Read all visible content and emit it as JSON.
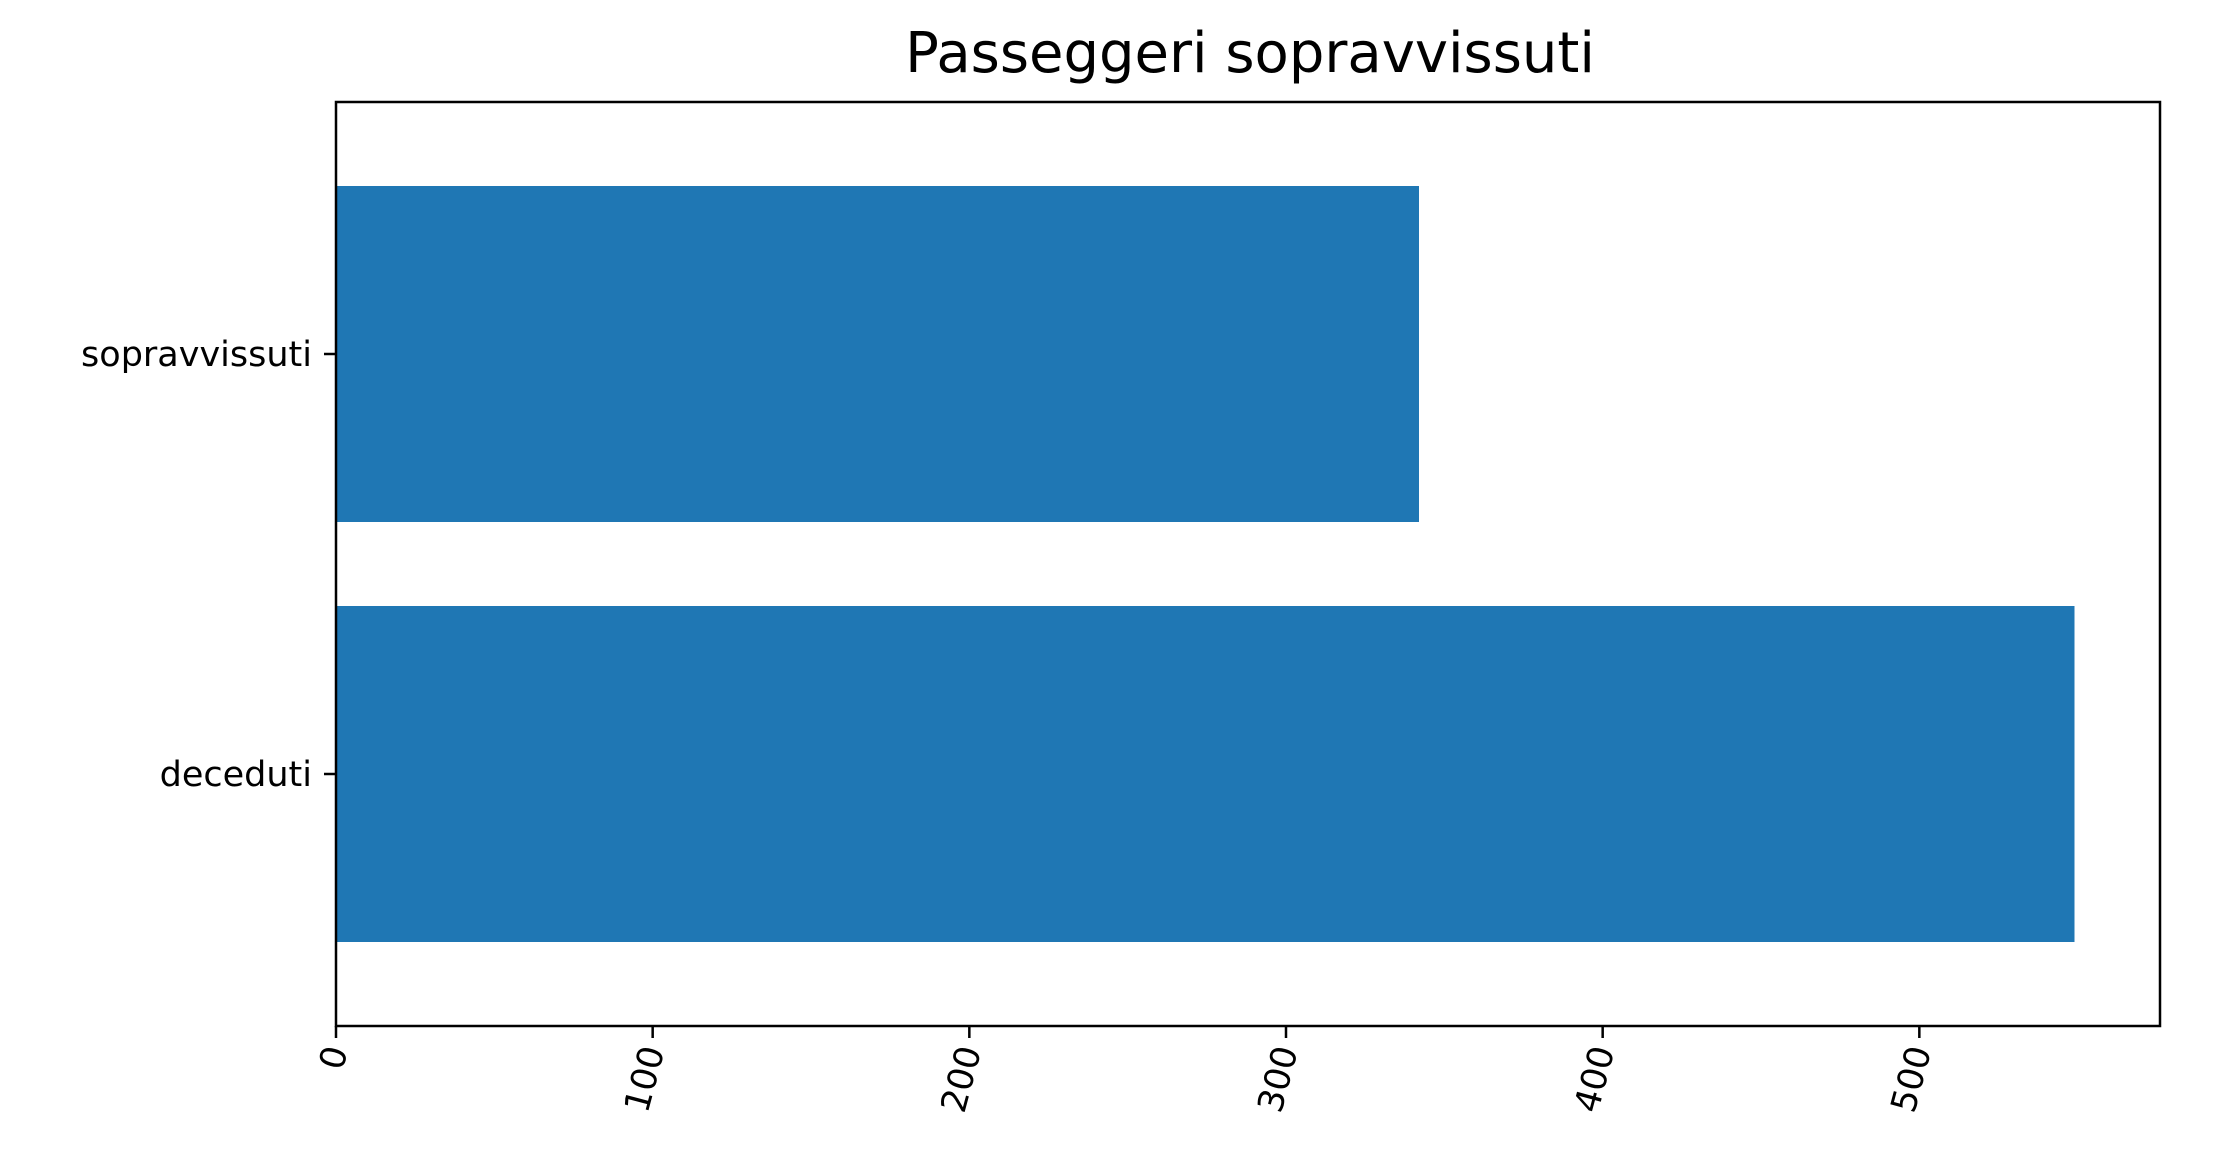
{
  "chart_data": {
    "type": "bar",
    "orientation": "horizontal",
    "title": "Passeggeri sopravvissuti",
    "xlabel": "",
    "ylabel": "",
    "categories": [
      "sopravvissuti",
      "deceduti"
    ],
    "values": [
      342,
      549
    ],
    "xlim": [
      0,
      576
    ],
    "xticks": [
      0,
      100,
      200,
      300,
      400,
      500
    ],
    "xtick_rotation": -75,
    "bar_color": "#1f77b4",
    "grid": false,
    "legend": "none"
  }
}
